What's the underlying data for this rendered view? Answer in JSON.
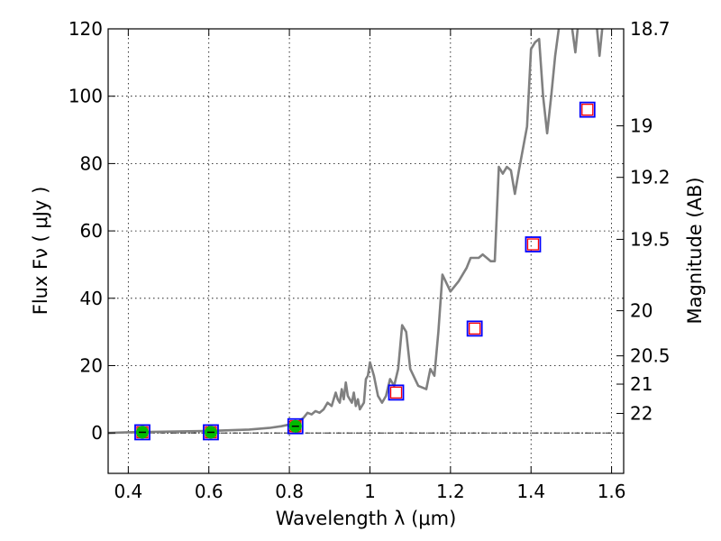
{
  "chart_data": {
    "type": "line",
    "xlabel": "Wavelength  λ (μm)",
    "ylabel": "Flux  Fν  ( μJy )",
    "ylabel_right": "Magnitude (AB)",
    "xlim": [
      0.35,
      1.63
    ],
    "ylim": [
      -12,
      120
    ],
    "grid": true,
    "x_ticks": [
      0.4,
      0.6,
      0.8,
      1.0,
      1.2,
      1.4,
      1.6
    ],
    "x_tick_labels": [
      "0.4",
      "0.6",
      "0.8",
      "1",
      "1.2",
      "1.4",
      "1.6"
    ],
    "y_ticks": [
      0,
      20,
      40,
      60,
      80,
      100,
      120
    ],
    "y_tick_labels": [
      "0",
      "20",
      "40",
      "60",
      "80",
      "100",
      "120"
    ],
    "right_ticks": [
      {
        "label": "18.7",
        "flux": 120
      },
      {
        "label": "19",
        "flux": 91.2
      },
      {
        "label": "19.2",
        "flux": 75.9
      },
      {
        "label": "19.5",
        "flux": 57.5
      },
      {
        "label": "20",
        "flux": 36.3
      },
      {
        "label": "20.5",
        "flux": 22.9
      },
      {
        "label": "21",
        "flux": 14.5
      },
      {
        "label": "22",
        "flux": 5.8
      }
    ],
    "colors": {
      "model": "#808080",
      "square": "#0000ff",
      "inner_square": "#ff0000",
      "photometry": "#00bb00",
      "zero_line": "#000000"
    },
    "series": [
      {
        "kind": "model_spectrum",
        "x": [
          0.35,
          0.4,
          0.45,
          0.5,
          0.55,
          0.6,
          0.65,
          0.7,
          0.75,
          0.78,
          0.8,
          0.82,
          0.835,
          0.845,
          0.855,
          0.865,
          0.875,
          0.885,
          0.895,
          0.905,
          0.915,
          0.92,
          0.925,
          0.93,
          0.935,
          0.94,
          0.945,
          0.95,
          0.955,
          0.96,
          0.965,
          0.97,
          0.975,
          0.98,
          0.985,
          0.99,
          0.995,
          1.0,
          1.01,
          1.02,
          1.03,
          1.04,
          1.05,
          1.06,
          1.07,
          1.08,
          1.09,
          1.1,
          1.12,
          1.14,
          1.15,
          1.16,
          1.17,
          1.18,
          1.2,
          1.22,
          1.24,
          1.25,
          1.27,
          1.28,
          1.29,
          1.3,
          1.31,
          1.32,
          1.33,
          1.34,
          1.35,
          1.36,
          1.37,
          1.39,
          1.4,
          1.41,
          1.42,
          1.43,
          1.44,
          1.45,
          1.46,
          1.47,
          1.48,
          1.49,
          1.5,
          1.51,
          1.52,
          1.53,
          1.54,
          1.55,
          1.56,
          1.57,
          1.58,
          1.59,
          1.6,
          1.63
        ],
        "y": [
          0,
          0.2,
          0.3,
          0.4,
          0.5,
          0.6,
          0.8,
          1.0,
          1.5,
          2.0,
          2.5,
          3.0,
          4.5,
          6.0,
          5.5,
          6.5,
          6.0,
          7.0,
          9.0,
          8.0,
          12.0,
          10.0,
          9.0,
          13.0,
          10.0,
          15.0,
          11.0,
          10.0,
          9.0,
          12.0,
          8.0,
          10.0,
          7.0,
          8.0,
          9.0,
          16.0,
          17.0,
          21.0,
          17.0,
          11.0,
          9.0,
          11.0,
          16.0,
          14.0,
          19.0,
          32.0,
          30.0,
          19.0,
          14.0,
          13.0,
          19.0,
          17.0,
          30.0,
          47.0,
          42.0,
          45.0,
          49.0,
          52.0,
          52.0,
          53.0,
          52.0,
          51.0,
          51.0,
          79.0,
          77.0,
          79.0,
          78.0,
          71.0,
          78.0,
          91.0,
          114.0,
          116.0,
          117.0,
          100.0,
          89.0,
          100.0,
          112.0,
          121.0,
          122.0,
          122.0,
          122.0,
          113.0,
          125.0,
          126.0,
          124.0,
          122.0,
          125.0,
          112.0,
          124.0,
          126.0,
          126.0,
          126.0
        ]
      },
      {
        "kind": "squares",
        "x": [
          0.435,
          0.605,
          0.815,
          1.065,
          1.26,
          1.405,
          1.54
        ],
        "y": [
          0.2,
          0.2,
          2.0,
          12.0,
          31.0,
          56.0,
          96.0
        ]
      },
      {
        "kind": "photometry_points",
        "x": [
          0.435,
          0.605,
          0.815
        ],
        "y": [
          0.2,
          0.2,
          2.0
        ]
      }
    ]
  }
}
